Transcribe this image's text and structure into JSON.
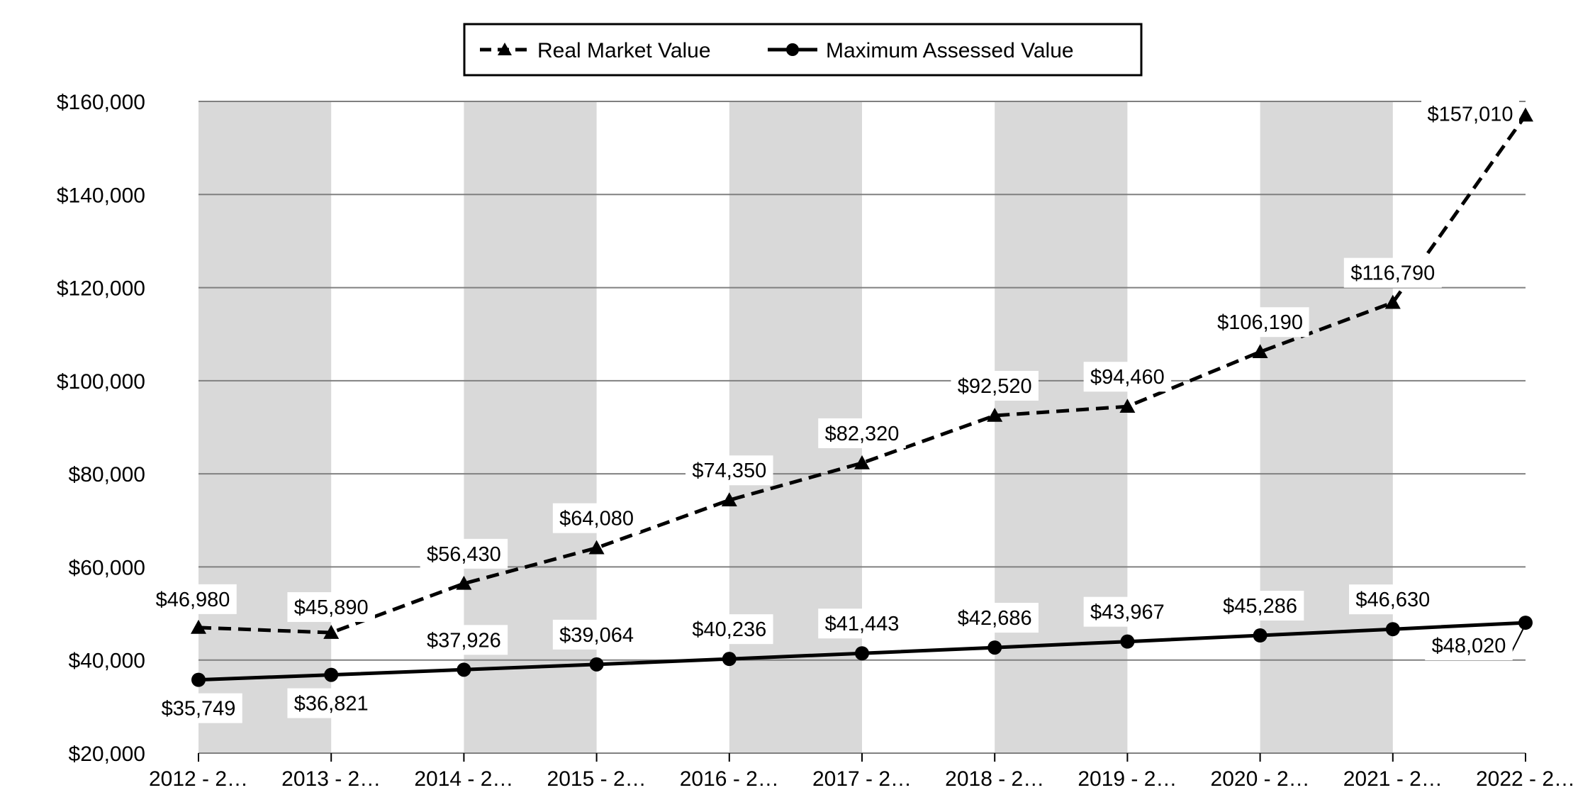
{
  "chart_data": {
    "type": "line",
    "title": "",
    "xlabel": "",
    "ylabel": "",
    "categories": [
      "2012 - 2…",
      "2013 - 2…",
      "2014 - 2…",
      "2015 - 2…",
      "2016 - 2…",
      "2017 - 2…",
      "2018 - 2…",
      "2019 - 2…",
      "2020 - 2…",
      "2021 - 2…",
      "2022 - 2…"
    ],
    "ylim": [
      20000,
      160000
    ],
    "y_ticks": [
      20000,
      40000,
      60000,
      80000,
      100000,
      120000,
      140000,
      160000
    ],
    "y_tick_labels": [
      "$20,000",
      "$40,000",
      "$60,000",
      "$80,000",
      "$100,000",
      "$120,000",
      "$140,000",
      "$160,000"
    ],
    "grid": true,
    "alternating_column_shading": true,
    "legend_position": "top-center",
    "series": [
      {
        "name": "Real Market Value",
        "line_style": "dashed",
        "marker": "triangle",
        "values": [
          46980,
          45890,
          56430,
          64080,
          74350,
          82320,
          92520,
          94460,
          106190,
          116790,
          157010
        ],
        "labels": [
          "$46,980",
          "$45,890",
          "$56,430",
          "$64,080",
          "$74,350",
          "$82,320",
          "$92,520",
          "$94,460",
          "$106,190",
          "$116,790",
          "$157,010"
        ]
      },
      {
        "name": "Maximum Assessed Value",
        "line_style": "solid",
        "marker": "circle",
        "values": [
          35749,
          36821,
          37926,
          39064,
          40236,
          41443,
          42686,
          43967,
          45286,
          46630,
          48020
        ],
        "labels": [
          "$35,749",
          "$36,821",
          "$37,926",
          "$39,064",
          "$40,236",
          "$41,443",
          "$42,686",
          "$43,967",
          "$45,286",
          "$46,630",
          "$48,020"
        ]
      }
    ],
    "colors": {
      "line": "#000000",
      "shade": "#d9d9d9",
      "grid": "#808080",
      "background": "#ffffff",
      "label_box": "#ffffff"
    }
  }
}
